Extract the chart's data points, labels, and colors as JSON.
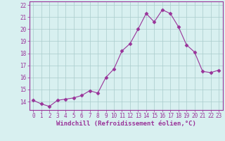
{
  "x": [
    0,
    1,
    2,
    3,
    4,
    5,
    6,
    7,
    8,
    9,
    10,
    11,
    12,
    13,
    14,
    15,
    16,
    17,
    18,
    19,
    20,
    21,
    22,
    23
  ],
  "y": [
    14.1,
    13.8,
    13.6,
    14.1,
    14.2,
    14.3,
    14.5,
    14.9,
    14.7,
    16.0,
    16.7,
    18.2,
    18.8,
    20.0,
    21.3,
    20.6,
    21.6,
    21.3,
    20.2,
    18.7,
    18.1,
    16.5,
    16.4,
    16.6
  ],
  "line_color": "#993399",
  "marker": "D",
  "markersize": 2.5,
  "linewidth": 0.8,
  "xlabel": "Windchill (Refroidissement éolien,°C)",
  "xlabel_fontsize": 6.5,
  "ylabel_ticks": [
    14,
    15,
    16,
    17,
    18,
    19,
    20,
    21,
    22
  ],
  "xlim": [
    -0.5,
    23.5
  ],
  "ylim": [
    13.3,
    22.3
  ],
  "bg_color": "#d8f0f0",
  "grid_color": "#aacccc",
  "tick_color": "#993399",
  "tick_fontsize": 5.5,
  "xlabel_color": "#993399"
}
